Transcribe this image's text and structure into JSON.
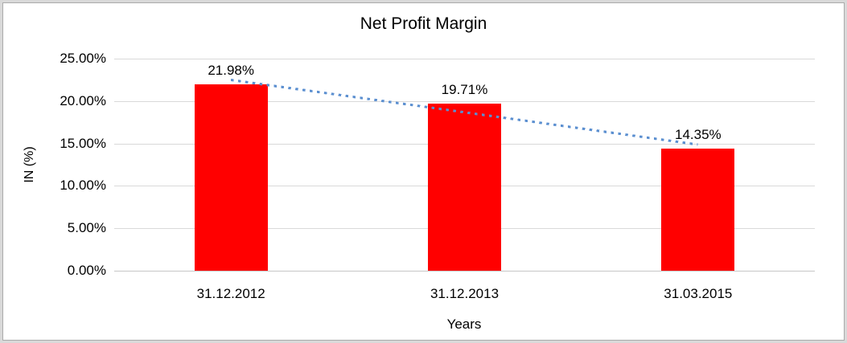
{
  "chart_data": {
    "type": "bar",
    "title": "Net Profit Margin",
    "categories": [
      "31.12.2012",
      "31.12.2013",
      "31.03.2015"
    ],
    "values": [
      21.98,
      19.71,
      14.35
    ],
    "data_labels": [
      "21.98%",
      "19.71%",
      "14.35%"
    ],
    "xlabel": "Years",
    "ylabel": "IN (%)",
    "ylim": [
      0,
      25
    ],
    "yticks": [
      0,
      5,
      10,
      15,
      20,
      25
    ],
    "ytick_labels": [
      "0.00%",
      "5.00%",
      "10.00%",
      "15.00%",
      "20.00%",
      "25.00%"
    ],
    "grid": true,
    "legend": false,
    "series_count": 1,
    "trendline": {
      "type": "linear",
      "style": "dotted"
    },
    "colors": {
      "bar": "#FF0000",
      "trendline": "#5B8FD0",
      "gridline": "#D9D9D9",
      "axis_line": "#C6C6C6",
      "text": "#000000",
      "background": "#FFFFFF",
      "frame_border": "#D9D9D9"
    }
  }
}
